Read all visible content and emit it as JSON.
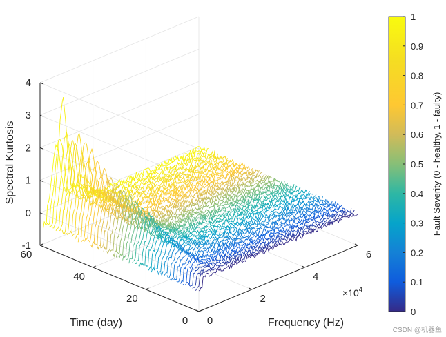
{
  "chart_data": {
    "type": "line",
    "subtype": "waterfall-3d",
    "title": "",
    "xlabel": "Frequency (Hz)",
    "ylabel": "Time (day)",
    "zlabel": "Spectral Kurtosis",
    "x_exponent_label": "×10",
    "x_exponent_power": "4",
    "xlim": [
      0,
      60000
    ],
    "ylim": [
      0,
      60
    ],
    "zlim": [
      -1,
      4
    ],
    "x_ticks": [
      0,
      20000,
      40000,
      60000
    ],
    "x_tick_labels": [
      "0",
      "2",
      "4",
      "6"
    ],
    "y_ticks": [
      0,
      20,
      40,
      60
    ],
    "y_tick_labels": [
      "0",
      "20",
      "40",
      "60"
    ],
    "z_ticks": [
      -1,
      0,
      1,
      2,
      3,
      4
    ],
    "z_tick_labels": [
      "-1",
      "0",
      "1",
      "2",
      "3",
      "4"
    ],
    "grid": true,
    "colormap": "parula",
    "series_count": 50,
    "series_days": [
      0,
      1.2,
      2.4,
      3.6,
      4.8,
      6,
      7.2,
      8.4,
      9.6,
      10.8,
      12,
      13.2,
      14.4,
      15.6,
      16.8,
      18,
      19.2,
      20.4,
      21.6,
      22.8,
      24,
      25.2,
      26.4,
      27.6,
      28.8,
      30,
      31.2,
      32.4,
      33.6,
      34.8,
      36,
      37.2,
      38.4,
      39.6,
      40.8,
      42,
      43.2,
      44.4,
      45.6,
      46.8,
      48,
      49.2,
      50.4,
      51.6,
      52.8,
      54,
      55.2,
      56.4,
      57.6,
      58.8
    ],
    "series_fault_severity": [
      0,
      0.02,
      0.04,
      0.06,
      0.08,
      0.1,
      0.12,
      0.14,
      0.16,
      0.18,
      0.2,
      0.22,
      0.24,
      0.26,
      0.28,
      0.3,
      0.32,
      0.34,
      0.36,
      0.38,
      0.4,
      0.42,
      0.44,
      0.46,
      0.48,
      0.5,
      0.52,
      0.54,
      0.56,
      0.58,
      0.6,
      0.62,
      0.64,
      0.66,
      0.68,
      0.7,
      0.72,
      0.74,
      0.76,
      0.78,
      0.8,
      0.82,
      0.84,
      0.86,
      0.88,
      0.9,
      0.92,
      0.94,
      0.96,
      0.98
    ],
    "series_peak_kurtosis": [
      0.0,
      0.05,
      0.1,
      0.12,
      0.15,
      0.2,
      0.22,
      0.25,
      0.3,
      0.35,
      0.4,
      0.45,
      0.5,
      0.55,
      0.6,
      0.65,
      0.7,
      0.75,
      0.8,
      0.9,
      1.0,
      0.9,
      1.1,
      1.0,
      1.2,
      1.1,
      1.3,
      1.2,
      1.4,
      1.3,
      1.5,
      1.4,
      1.6,
      1.5,
      1.8,
      1.6,
      2.0,
      1.7,
      2.2,
      1.9,
      2.4,
      2.0,
      2.5,
      2.2,
      2.3,
      2.1,
      2.4,
      3.4,
      2.2,
      1.9
    ],
    "peak_frequency_hz": 5000,
    "frequency_range_hz": [
      0,
      60000
    ],
    "colorbar": {
      "label": "Fault Severity (0 - healthy, 1 - faulty)",
      "range": [
        0,
        1
      ],
      "ticks": [
        0,
        0.1,
        0.2,
        0.3,
        0.4,
        0.5,
        0.6,
        0.7,
        0.8,
        0.9,
        1
      ],
      "tick_labels": [
        "0",
        "0.1",
        "0.2",
        "0.3",
        "0.4",
        "0.5",
        "0.6",
        "0.7",
        "0.8",
        "0.9",
        "1"
      ]
    }
  },
  "watermark": "CSDN @机器鱼"
}
